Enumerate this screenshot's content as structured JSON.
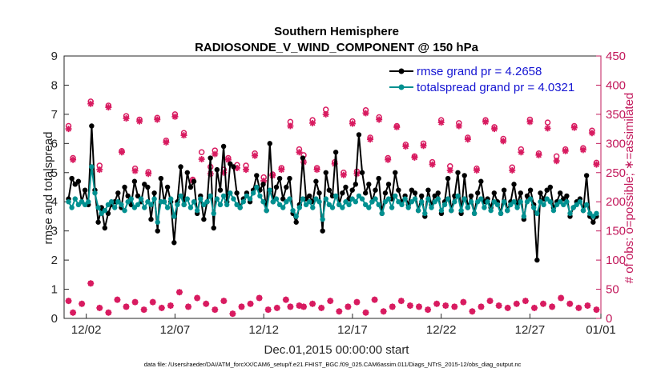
{
  "chart_data": {
    "type": "line",
    "title": "Southern Hemisphere",
    "subtitle": "RADIOSONDE_V_WIND_COMPONENT @ 150 hPa",
    "xlabel": "Dec.01,2015 00:00:00 start",
    "ylabel": "rmse and totalspread",
    "ylabel_right": "# of obs: o=possible; ∗=assimilated",
    "ylim": [
      0,
      9
    ],
    "ylim_right": [
      0,
      450
    ],
    "xlim": [
      0.75,
      31.0
    ],
    "xticks": [
      2,
      7,
      12,
      17,
      22,
      27,
      32
    ],
    "xtick_labels": [
      "12/02",
      "12/07",
      "12/12",
      "12/17",
      "12/22",
      "12/27",
      "01/01"
    ],
    "yticks": [
      "0",
      "1",
      "2",
      "3",
      "4",
      "5",
      "6",
      "7",
      "8",
      "9"
    ],
    "yticks_right": [
      "0",
      "50",
      "100",
      "150",
      "200",
      "250",
      "300",
      "350",
      "400",
      "450"
    ],
    "colors": {
      "rmse": "#000000",
      "spread": "#009090",
      "obs": "#d81b60",
      "right_axis": "#c2185b",
      "legend_text": "#1414d2"
    },
    "legend": [
      {
        "label": "rmse grand pr = 4.2658",
        "series": "rmse"
      },
      {
        "label": "totalspread grand pr = 4.0321",
        "series": "spread"
      }
    ],
    "series": [
      {
        "name": "rmse",
        "values": [
          4.1,
          4.8,
          4.6,
          4.7,
          4.0,
          4.4,
          3.9,
          6.6,
          4.4,
          3.3,
          3.8,
          3.1,
          3.6,
          3.9,
          4.0,
          4.3,
          3.8,
          4.5,
          4.2,
          3.9,
          4.7,
          4.2,
          4.0,
          4.6,
          4.5,
          3.4,
          4.3,
          3.0,
          4.8,
          4.0,
          4.5,
          4.0,
          2.6,
          4.0,
          5.2,
          3.9,
          5.0,
          4.5,
          4.7,
          3.6,
          4.2,
          3.4,
          4.0,
          5.5,
          3.1,
          5.1,
          4.4,
          5.9,
          4.0,
          5.3,
          5.2,
          4.3,
          3.8,
          4.1,
          4.3,
          4.0,
          4.4,
          4.9,
          4.4,
          4.6,
          3.7,
          6.0,
          4.0,
          4.5,
          4.8,
          4.1,
          4.5,
          4.8,
          3.6,
          3.3,
          3.9,
          5.5,
          4.1,
          4.2,
          4.0,
          4.7,
          4.3,
          3.0,
          5.0,
          4.4,
          4.2,
          5.7,
          3.9,
          4.3,
          4.5,
          4.1,
          4.4,
          4.6,
          6.3,
          5.0,
          4.3,
          4.6,
          4.0,
          4.4,
          4.8,
          3.6,
          4.3,
          4.6,
          4.1,
          5.0,
          4.4,
          4.0,
          4.2,
          3.9,
          4.4,
          4.3,
          3.7,
          4.2,
          3.5,
          4.4,
          3.9,
          4.2,
          4.3,
          3.6,
          4.0,
          4.8,
          3.7,
          4.2,
          5.0,
          3.6,
          4.9,
          3.8,
          4.2,
          3.6,
          4.3,
          4.7,
          4.0,
          4.1,
          3.8,
          4.3,
          4.0,
          3.6,
          4.4,
          3.7,
          4.0,
          4.6,
          3.9,
          4.3,
          3.4,
          4.2,
          4.4,
          3.9,
          2.0,
          4.3,
          4.1,
          4.4,
          4.5,
          3.8,
          4.0,
          4.3,
          4.1,
          4.2,
          3.5,
          3.8,
          4.0,
          4.1,
          3.7,
          4.9,
          3.5,
          3.3,
          3.5
        ]
      },
      {
        "name": "totalspread",
        "values": [
          4.0,
          3.8,
          4.1,
          3.9,
          4.0,
          3.9,
          4.0,
          5.2,
          4.3,
          3.8,
          3.6,
          3.7,
          3.9,
          4.0,
          3.8,
          4.0,
          3.9,
          3.7,
          4.0,
          4.1,
          3.8,
          3.9,
          4.1,
          3.8,
          4.0,
          3.9,
          4.1,
          3.3,
          4.0,
          4.0,
          3.8,
          4.1,
          3.5,
          3.9,
          4.2,
          3.9,
          4.1,
          3.8,
          4.0,
          3.7,
          4.1,
          3.9,
          4.0,
          4.2,
          3.6,
          4.1,
          3.9,
          4.2,
          3.9,
          4.3,
          4.1,
          3.9,
          3.8,
          4.0,
          4.2,
          4.1,
          4.3,
          4.5,
          4.2,
          4.0,
          3.7,
          4.4,
          4.0,
          4.1,
          3.9,
          3.8,
          4.0,
          4.1,
          3.7,
          3.5,
          3.8,
          4.1,
          3.9,
          4.0,
          3.8,
          4.1,
          4.0,
          3.4,
          4.1,
          3.9,
          3.8,
          4.2,
          3.9,
          3.8,
          4.0,
          3.9,
          4.1,
          4.0,
          4.2,
          4.1,
          3.9,
          3.8,
          4.0,
          4.1,
          3.9,
          3.6,
          4.0,
          4.1,
          3.8,
          4.2,
          4.0,
          3.9,
          4.1,
          3.8,
          4.0,
          4.1,
          3.7,
          4.0,
          3.6,
          4.1,
          3.8,
          4.0,
          4.1,
          3.7,
          3.9,
          4.1,
          3.7,
          4.0,
          4.2,
          3.7,
          4.1,
          3.8,
          4.0,
          3.6,
          4.0,
          4.1,
          3.8,
          4.0,
          3.7,
          4.0,
          3.9,
          3.6,
          4.0,
          3.7,
          3.9,
          4.0,
          3.8,
          4.0,
          3.5,
          4.0,
          4.1,
          3.8,
          3.6,
          4.0,
          3.9,
          4.1,
          4.0,
          3.7,
          3.9,
          4.0,
          3.9,
          4.0,
          3.6,
          3.8,
          3.9,
          4.0,
          3.7,
          3.9,
          3.6,
          3.5,
          3.6
        ]
      }
    ],
    "obs_possible_top": {
      "x": [
        1.0,
        1.25,
        2.25,
        2.75,
        3.25,
        4.0,
        4.25,
        4.75,
        5.0,
        5.5,
        6.0,
        6.5,
        7.0,
        7.5,
        8.0,
        8.5,
        9.0,
        9.25,
        9.75,
        10.0,
        10.5,
        11.0,
        11.5,
        12.0,
        12.5,
        13.0,
        13.5,
        14.0,
        14.25,
        14.75,
        15.0,
        15.5,
        16.0,
        16.5,
        17.0,
        17.25,
        17.75,
        18.0,
        18.5,
        19.0,
        19.5,
        20.0,
        20.5,
        21.0,
        21.5,
        22.0,
        22.5,
        23.0,
        23.5,
        24.0,
        24.5,
        25.0,
        25.5,
        26.0,
        26.5,
        27.0,
        27.5,
        28.0,
        28.5,
        29.0,
        29.5,
        30.0,
        30.5,
        30.75
      ],
      "y": [
        330,
        275,
        372,
        262,
        365,
        287,
        347,
        257,
        341,
        251,
        344,
        305,
        350,
        318,
        238,
        285,
        260,
        288,
        255,
        275,
        263,
        262,
        283,
        242,
        247,
        258,
        337,
        290,
        280,
        340,
        258,
        358,
        268,
        250,
        338,
        252,
        357,
        310,
        345,
        275,
        330,
        298,
        278,
        300,
        268,
        340,
        261,
        335,
        310,
        257,
        340,
        328,
        308,
        259,
        290,
        341,
        283,
        336,
        278,
        290,
        330,
        292,
        322,
        267
      ]
    },
    "obs_assimilated_top": {
      "x": [
        1.0,
        1.25,
        2.25,
        2.75,
        3.25,
        4.0,
        4.25,
        4.75,
        5.0,
        5.5,
        6.0,
        6.5,
        7.0,
        7.5,
        8.0,
        8.5,
        9.0,
        9.25,
        9.75,
        10.0,
        10.5,
        11.0,
        11.5,
        12.0,
        12.5,
        13.0,
        13.5,
        14.0,
        14.25,
        14.75,
        15.0,
        15.5,
        16.0,
        16.5,
        17.0,
        17.25,
        17.75,
        18.0,
        18.5,
        19.0,
        19.5,
        20.0,
        20.5,
        21.0,
        21.5,
        22.0,
        22.5,
        23.0,
        23.5,
        24.0,
        24.5,
        25.0,
        25.5,
        26.0,
        26.5,
        27.0,
        27.5,
        28.0,
        28.5,
        29.0,
        29.5,
        30.0,
        30.5,
        30.75
      ],
      "y": [
        325,
        272,
        368,
        255,
        362,
        285,
        343,
        253,
        338,
        248,
        341,
        302,
        346,
        314,
        236,
        273,
        248,
        282,
        250,
        272,
        258,
        255,
        279,
        236,
        245,
        255,
        330,
        285,
        268,
        335,
        255,
        350,
        265,
        246,
        334,
        248,
        352,
        307,
        341,
        272,
        328,
        295,
        276,
        296,
        264,
        336,
        254,
        330,
        307,
        254,
        337,
        325,
        304,
        254,
        285,
        337,
        280,
        326,
        270,
        287,
        327,
        289,
        318,
        264
      ]
    },
    "obs_bottom": {
      "x": [
        1.0,
        1.25,
        1.75,
        2.25,
        2.75,
        3.25,
        3.75,
        4.25,
        4.75,
        5.25,
        5.75,
        6.25,
        6.75,
        7.25,
        7.75,
        8.25,
        8.75,
        9.25,
        9.75,
        10.25,
        10.75,
        11.25,
        11.75,
        12.25,
        12.75,
        13.25,
        13.5,
        14.0,
        14.25,
        14.75,
        15.25,
        15.75,
        16.25,
        16.75,
        17.25,
        17.75,
        18.25,
        18.75,
        19.25,
        19.75,
        20.25,
        20.75,
        21.25,
        21.75,
        22.25,
        22.75,
        23.25,
        23.75,
        24.25,
        24.75,
        25.25,
        25.75,
        26.25,
        26.75,
        27.25,
        27.75,
        28.25,
        28.75,
        29.25,
        29.75,
        30.25,
        30.75
      ],
      "y": [
        30,
        10,
        25,
        60,
        18,
        10,
        32,
        20,
        28,
        15,
        28,
        18,
        22,
        45,
        20,
        35,
        25,
        15,
        30,
        8,
        20,
        25,
        35,
        15,
        18,
        32,
        20,
        22,
        20,
        25,
        18,
        30,
        12,
        20,
        28,
        10,
        32,
        12,
        20,
        30,
        22,
        20,
        15,
        25,
        22,
        20,
        28,
        12,
        20,
        30,
        22,
        18,
        25,
        30,
        18,
        25,
        20,
        35,
        25,
        18,
        22,
        15
      ]
    },
    "footnote": "data file: /Users/raeder/DAI/ATM_forcXX/CAM6_setup/f.e21.FHIST_BGC.f09_025.CAM6assim.011/Diags_NTrS_2015-12/obs_diag_output.nc"
  }
}
